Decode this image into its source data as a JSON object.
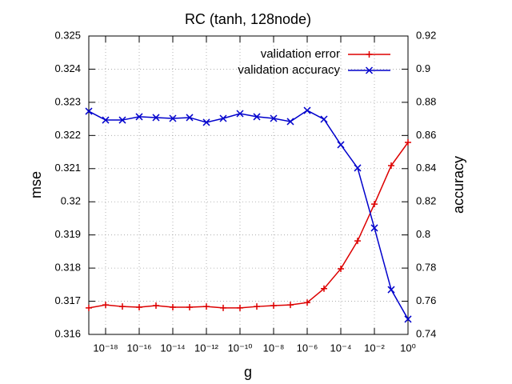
{
  "chart_data": {
    "type": "line",
    "title": "RC (tanh, 128node)",
    "xlabel": "g",
    "ylabel": "mse",
    "y2label": "accuracy",
    "xscale": "log",
    "grid": true,
    "legend": "upper right",
    "x": [
      1e-19,
      1e-18,
      1e-17,
      1e-16,
      1e-15,
      1e-14,
      1e-13,
      1e-12,
      1e-11,
      1e-10,
      1e-09,
      1e-08,
      1e-07,
      1e-06,
      1e-05,
      0.0001,
      0.001,
      0.01,
      0.1,
      1
    ],
    "xlim": [
      1e-19,
      1
    ],
    "xticks": [
      {
        "value": 1e-18,
        "label": "10⁻¹⁸"
      },
      {
        "value": 1e-16,
        "label": "10⁻¹⁶"
      },
      {
        "value": 1e-14,
        "label": "10⁻¹⁴"
      },
      {
        "value": 1e-12,
        "label": "10⁻¹²"
      },
      {
        "value": 1e-10,
        "label": "10⁻¹⁰"
      },
      {
        "value": 1e-08,
        "label": "10⁻⁸"
      },
      {
        "value": 1e-06,
        "label": "10⁻⁶"
      },
      {
        "value": 0.0001,
        "label": "10⁻⁴"
      },
      {
        "value": 0.01,
        "label": "10⁻²"
      },
      {
        "value": 1,
        "label": "10⁰"
      }
    ],
    "ylim": [
      0.316,
      0.325
    ],
    "yticks": [
      0.316,
      0.317,
      0.318,
      0.319,
      0.32,
      0.321,
      0.322,
      0.323,
      0.324,
      0.325
    ],
    "y2lim": [
      0.74,
      0.92
    ],
    "y2ticks": [
      0.74,
      0.76,
      0.78,
      0.8,
      0.82,
      0.84,
      0.86,
      0.88,
      0.9,
      0.92
    ],
    "series": [
      {
        "name": "validation error",
        "color": "#dd0000",
        "marker": "plus",
        "axis": "y",
        "values": [
          0.3168,
          0.31689,
          0.31684,
          0.31682,
          0.31687,
          0.31682,
          0.31682,
          0.31684,
          0.3168,
          0.3168,
          0.31684,
          0.31687,
          0.31689,
          0.31696,
          0.31738,
          0.31798,
          0.31882,
          0.31993,
          0.32109,
          0.32179
        ]
      },
      {
        "name": "validation accuracy",
        "color": "#0000cc",
        "marker": "cross",
        "axis": "y2",
        "values": [
          0.8746,
          0.8693,
          0.8693,
          0.8713,
          0.8708,
          0.8703,
          0.8708,
          0.8679,
          0.8703,
          0.8732,
          0.8713,
          0.8703,
          0.8684,
          0.8751,
          0.8698,
          0.8544,
          0.8404,
          0.8042,
          0.767,
          0.7492
        ]
      }
    ]
  }
}
